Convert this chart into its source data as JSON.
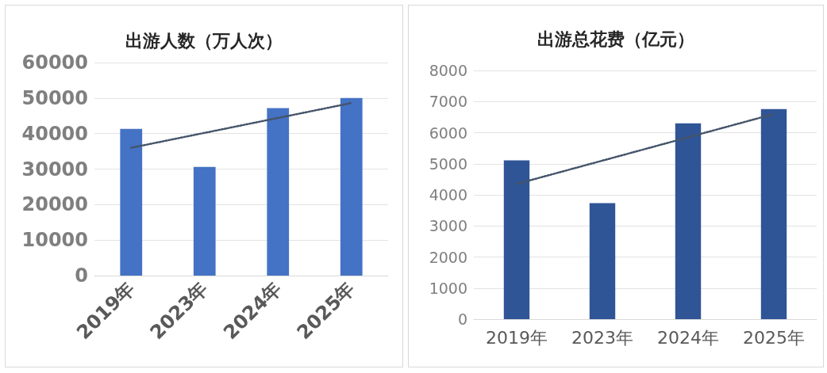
{
  "chart_data": [
    {
      "type": "bar",
      "title": "出游人数（万人次）",
      "categories": [
        "2019年",
        "2023年",
        "2024年",
        "2025年"
      ],
      "series": [
        {
          "values": [
            41300,
            30600,
            47200,
            50000
          ],
          "color": "#4472c4"
        },
        {
          "type": "line",
          "x": [
            "2019年",
            "2025年"
          ],
          "values": [
            36000,
            48600
          ],
          "color": "#44546a",
          "line_style": "dotted"
        }
      ],
      "ylim": [
        0,
        60000
      ],
      "yticks": [
        0,
        10000,
        20000,
        30000,
        40000,
        50000,
        60000
      ],
      "grid": "y"
    },
    {
      "type": "bar",
      "title": "出游总花费（亿元）",
      "categories": [
        "2019年",
        "2023年",
        "2024年",
        "2025年"
      ],
      "series": [
        {
          "values": [
            5110,
            3730,
            6300,
            6760
          ],
          "color": "#2f5597"
        },
        {
          "type": "line",
          "x": [
            "2019年",
            "2025年"
          ],
          "values": [
            4350,
            6600
          ],
          "color": "#44546a",
          "line_style": "dotted"
        }
      ],
      "ylim": [
        0,
        8000
      ],
      "yticks": [
        0,
        1000,
        2000,
        3000,
        4000,
        5000,
        6000,
        7000,
        8000
      ],
      "grid": "y"
    }
  ]
}
